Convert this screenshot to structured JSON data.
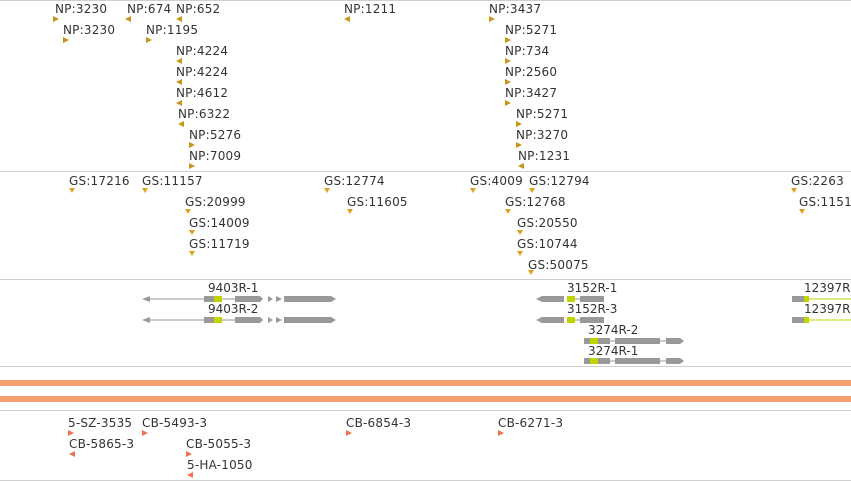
{
  "colors": {
    "np_marker": "#c8941a",
    "gs_marker": "#e0a020",
    "cb_marker": "#f07050",
    "exon": "#999999",
    "utr": "#bfd400",
    "separator_bar": "#f4a070",
    "track_line": "#cfcfcf"
  },
  "np_track": {
    "features": [
      {
        "label": "NP:3230"
      },
      {
        "label": "NP:674"
      },
      {
        "label": "NP:652"
      },
      {
        "label": "NP:1211"
      },
      {
        "label": "NP:3437"
      },
      {
        "label": "NP:3230"
      },
      {
        "label": "NP:1195"
      },
      {
        "label": "NP:5271"
      },
      {
        "label": "NP:4224"
      },
      {
        "label": "NP:734"
      },
      {
        "label": "NP:4224"
      },
      {
        "label": "NP:2560"
      },
      {
        "label": "NP:4612"
      },
      {
        "label": "NP:3427"
      },
      {
        "label": "NP:6322"
      },
      {
        "label": "NP:5271"
      },
      {
        "label": "NP:5276"
      },
      {
        "label": "NP:3270"
      },
      {
        "label": "NP:7009"
      },
      {
        "label": "NP:1231"
      }
    ]
  },
  "gs_track": {
    "features": [
      {
        "label": "GS:17216"
      },
      {
        "label": "GS:11157"
      },
      {
        "label": "GS:12774"
      },
      {
        "label": "GS:4009"
      },
      {
        "label": "GS:12794"
      },
      {
        "label": "GS:2263"
      },
      {
        "label": "GS:20999"
      },
      {
        "label": "GS:11605"
      },
      {
        "label": "GS:12768"
      },
      {
        "label": "GS:1151"
      },
      {
        "label": "GS:14009"
      },
      {
        "label": "GS:20550"
      },
      {
        "label": "GS:11719"
      },
      {
        "label": "GS:10744"
      },
      {
        "label": "GS:50075"
      }
    ]
  },
  "gene_track": {
    "genes": [
      {
        "label": "9403R-1"
      },
      {
        "label": "9403R-2"
      },
      {
        "label": "3152R-1"
      },
      {
        "label": "3152R-3"
      },
      {
        "label": "3274R-2"
      },
      {
        "label": "3274R-1"
      },
      {
        "label": "12397R"
      },
      {
        "label": "12397R"
      }
    ]
  },
  "cb_track": {
    "features": [
      {
        "label": "5-SZ-3535"
      },
      {
        "label": "CB-5493-3"
      },
      {
        "label": "CB-6854-3"
      },
      {
        "label": "CB-6271-3"
      },
      {
        "label": "CB-5865-3"
      },
      {
        "label": "CB-5055-3"
      },
      {
        "label": "5-HA-1050"
      }
    ]
  }
}
